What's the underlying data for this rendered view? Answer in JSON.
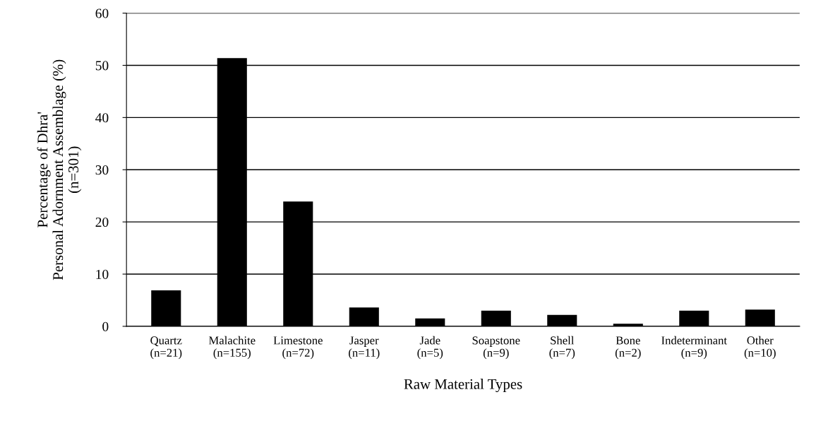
{
  "chart_data": {
    "type": "bar",
    "categories": [
      "Quartz\n(n=21)",
      "Malachite\n(n=155)",
      "Limestone\n(n=72)",
      "Jasper\n(n=11)",
      "Jade\n(n=5)",
      "Soapstone\n(n=9)",
      "Shell\n(n=7)",
      "Bone\n(n=2)",
      "Indeterminant\n(n=9)",
      "Other\n(n=10)"
    ],
    "values": [
      6.9,
      51.4,
      23.9,
      3.6,
      1.5,
      3.0,
      2.2,
      0.5,
      3.0,
      3.2
    ],
    "color": "#000000",
    "xlabel": "Raw Material Types",
    "ylabel": "Percentage of Dhra'\nPersonal Adornment Assemblage (%)\n(n=301)",
    "ylim": [
      0,
      60
    ],
    "yticks": [
      0,
      10,
      20,
      30,
      40,
      50,
      60
    ],
    "grid": "y"
  }
}
